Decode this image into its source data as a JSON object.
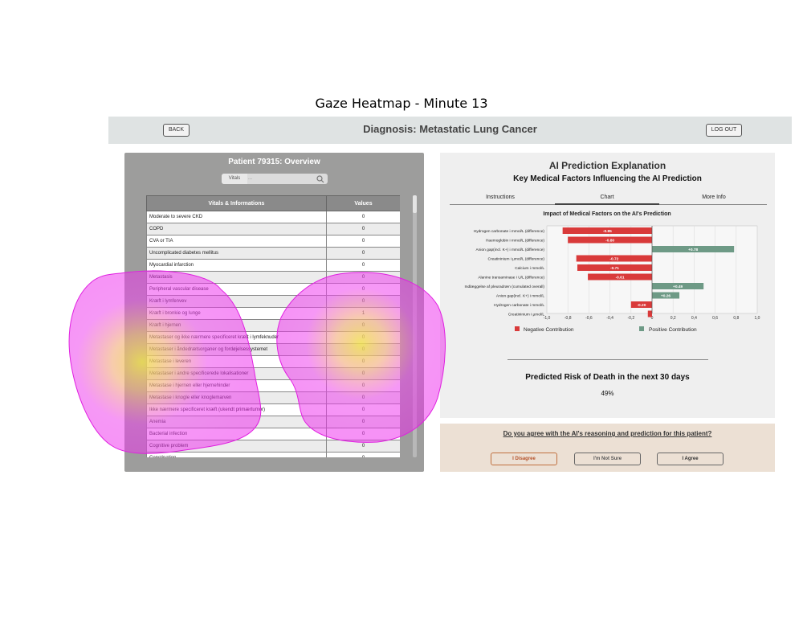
{
  "figure_title": "Gaze Heatmap - Minute 13",
  "header": {
    "back_label": "BACK",
    "title": "Diagnosis: Metastatic Lung Cancer",
    "logout_label": "LOG OUT"
  },
  "patient_panel": {
    "title": "Patient 79315: Overview",
    "search_label": "Vitals",
    "search_placeholder": "...",
    "table_headers": [
      "Vitals & Informations",
      "Values"
    ],
    "rows": [
      {
        "name": "Moderate to severe CKD",
        "value": "0"
      },
      {
        "name": "COPD",
        "value": "0"
      },
      {
        "name": "CVA or TIA",
        "value": "0"
      },
      {
        "name": "Uncomplicated diabetes mellitus",
        "value": "0"
      },
      {
        "name": "Myocardial infarction",
        "value": "0"
      },
      {
        "name": "Metastasis",
        "value": "0"
      },
      {
        "name": "Peripheral vascular disease",
        "value": "0"
      },
      {
        "name": "Kræft i lymfenvev",
        "value": "0"
      },
      {
        "name": "Kræft i bronkie og lunge",
        "value": "1"
      },
      {
        "name": "Kræft i hjernen",
        "value": "0"
      },
      {
        "name": "Metastaser og ikke nærmere specificeret kræft i lymfeknuder",
        "value": "0"
      },
      {
        "name": "Metastaser i åndedrætsorganer og fordøjelsessystemet",
        "value": "0"
      },
      {
        "name": "Metastase i leveren",
        "value": "0"
      },
      {
        "name": "Metastaser i andre specificerede lokalisationer",
        "value": "0"
      },
      {
        "name": "Metastase i hjernen eller hjernehinder",
        "value": "0"
      },
      {
        "name": "Metastase i knogle eller knoglemarven",
        "value": "0"
      },
      {
        "name": "Ikke nærmere specificeret kræft (ukendt primærtumor)",
        "value": "0"
      },
      {
        "name": "Anemia",
        "value": "0"
      },
      {
        "name": "Bacterial infection",
        "value": "0"
      },
      {
        "name": "Cognitive problem",
        "value": "0"
      },
      {
        "name": "Constipation",
        "value": "0"
      }
    ]
  },
  "explanation_panel": {
    "title": "AI Prediction Explanation",
    "subtitle": "Key Medical Factors Influencing the AI Prediction",
    "tabs": [
      {
        "label": "Instructions",
        "active": false
      },
      {
        "label": "Chart",
        "active": true
      },
      {
        "label": "More Info",
        "active": false
      }
    ],
    "risk_title": "Predicted Risk of Death in the next 30 days",
    "risk_value": "49%"
  },
  "chart_data": {
    "type": "bar",
    "orientation": "horizontal",
    "title": "Impact of Medical Factors on the AI's Prediction",
    "categories": [
      "Hydrogen carbonate i mmol/L (difference)",
      "Haemoglobin i mmol/L (difference)",
      "Anion gap(incl. K+) i mmol/L (difference)",
      "Creatininium i µmol/L (difference)",
      "Calcium i mmol/L",
      "Alanine transaminase i U/L (difference)",
      "Indlæggelse af pleuradræn (cumulated overall)",
      "Anion gap(incl. K+) i mmol/L",
      "Hydrogen carbonate i mmol/L",
      "Creatininium i µmol/L"
    ],
    "values": [
      -0.85,
      -0.8,
      0.78,
      -0.72,
      -0.71,
      -0.61,
      0.49,
      0.26,
      -0.2,
      -0.04
    ],
    "data_labels": [
      "-0.85",
      "-0.80",
      "+0.78",
      "-0.72",
      "-0.71",
      "-0.61",
      "+0.49",
      "+0.26",
      "-0.20",
      ""
    ],
    "xlim": [
      -1.0,
      1.0
    ],
    "xticks": [
      "-1,0",
      "-0,8",
      "-0,6",
      "-0,4",
      "-0,2",
      "0",
      "0,2",
      "0,4",
      "0,6",
      "0,8",
      "1,0"
    ],
    "grid": true,
    "legend": [
      {
        "label": "Negative Contribution",
        "color": "#d93a3a"
      },
      {
        "label": "Positive Contribution",
        "color": "#6e9a86"
      }
    ],
    "legend_position": "bottom"
  },
  "question_panel": {
    "question": "Do you agree with the AI's reasoning and prediction for this patient?",
    "buttons": [
      "I Disagree",
      "I'm Not Sure",
      "I Agree"
    ]
  },
  "colors": {
    "negative": "#d93a3a",
    "positive": "#6e9a86",
    "heat_outer": "#ee22ee",
    "heat_core": "#f0e050"
  }
}
